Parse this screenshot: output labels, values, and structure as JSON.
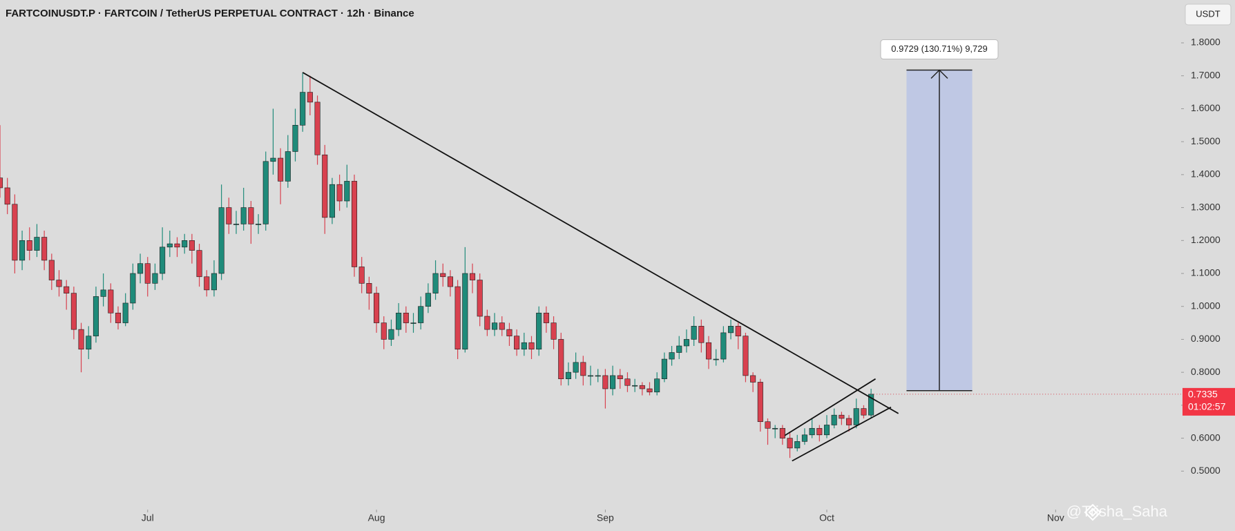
{
  "chart_data": {
    "type": "candlestick",
    "title": "FARTCOINUSDT.P · FARTCOIN / TetherUS PERPETUAL CONTRACT · 12h · Binance",
    "currency_label": "USDT",
    "open": [
      1.39,
      1.36,
      1.31,
      1.14,
      1.2,
      1.17,
      1.21,
      1.14,
      1.08,
      1.06,
      1.04,
      0.93,
      0.87,
      0.91,
      1.03,
      1.05,
      0.98,
      0.95,
      1.01,
      1.1,
      1.13,
      1.07,
      1.1,
      1.18,
      1.19,
      1.18,
      1.2,
      1.17,
      1.09,
      1.05,
      1.1,
      1.3,
      1.25,
      1.25,
      1.3,
      1.25,
      1.25,
      1.44,
      1.45,
      1.38,
      1.47,
      1.55,
      1.65,
      1.62,
      1.46,
      1.27,
      1.37,
      1.32,
      1.38,
      1.12,
      1.07,
      1.04,
      0.95,
      0.9,
      0.93,
      0.98,
      0.95,
      0.95,
      1.0,
      1.04,
      1.1,
      1.09,
      1.06,
      0.87,
      1.1,
      1.08,
      0.97,
      0.93,
      0.95,
      0.93,
      0.91,
      0.87,
      0.89,
      0.87,
      0.98,
      0.95,
      0.9,
      0.78,
      0.8,
      0.83,
      0.79,
      0.79,
      0.79,
      0.75,
      0.79,
      0.78,
      0.76,
      0.76,
      0.75,
      0.74,
      0.78,
      0.84,
      0.86,
      0.88,
      0.9,
      0.94,
      0.89,
      0.84,
      0.84,
      0.92,
      0.94,
      0.91,
      0.79,
      0.77,
      0.65,
      0.63,
      0.63,
      0.6,
      0.57,
      0.59,
      0.61,
      0.63,
      0.61,
      0.64,
      0.67,
      0.66,
      0.64,
      0.69,
      0.67
    ],
    "high": [
      1.55,
      1.39,
      1.34,
      1.23,
      1.24,
      1.25,
      1.23,
      1.16,
      1.11,
      1.08,
      1.06,
      0.95,
      0.94,
      1.06,
      1.1,
      1.07,
      1.0,
      1.04,
      1.13,
      1.16,
      1.15,
      1.13,
      1.24,
      1.23,
      1.21,
      1.22,
      1.22,
      1.19,
      1.11,
      1.14,
      1.37,
      1.33,
      1.29,
      1.36,
      1.32,
      1.28,
      1.47,
      1.6,
      1.48,
      1.52,
      1.6,
      1.71,
      1.7,
      1.64,
      1.49,
      1.39,
      1.4,
      1.43,
      1.4,
      1.15,
      1.09,
      1.06,
      0.97,
      0.96,
      1.01,
      1.0,
      0.98,
      1.03,
      1.07,
      1.14,
      1.13,
      1.11,
      1.08,
      1.18,
      1.13,
      1.1,
      0.99,
      0.98,
      0.97,
      0.95,
      0.93,
      0.92,
      0.91,
      1.0,
      1.0,
      0.97,
      0.92,
      0.83,
      0.86,
      0.85,
      0.82,
      0.81,
      0.81,
      0.82,
      0.81,
      0.8,
      0.78,
      0.77,
      0.77,
      0.8,
      0.86,
      0.88,
      0.91,
      0.93,
      0.97,
      0.96,
      0.91,
      0.87,
      0.94,
      0.96,
      0.95,
      0.92,
      0.8,
      0.78,
      0.66,
      0.64,
      0.64,
      0.62,
      0.61,
      0.63,
      0.66,
      0.64,
      0.67,
      0.69,
      0.68,
      0.67,
      0.72,
      0.7,
      0.75
    ],
    "low": [
      1.33,
      1.28,
      1.1,
      1.11,
      1.14,
      1.15,
      1.11,
      1.05,
      1.03,
      0.99,
      0.9,
      0.8,
      0.84,
      0.89,
      1.0,
      0.95,
      0.93,
      0.94,
      0.99,
      1.07,
      1.03,
      1.05,
      1.08,
      1.15,
      1.15,
      1.16,
      1.13,
      1.06,
      1.03,
      1.03,
      1.08,
      1.22,
      1.22,
      1.23,
      1.19,
      1.22,
      1.23,
      1.4,
      1.31,
      1.36,
      1.44,
      1.53,
      1.58,
      1.43,
      1.22,
      1.25,
      1.29,
      1.3,
      1.09,
      1.04,
      0.99,
      0.92,
      0.87,
      0.88,
      0.91,
      0.92,
      0.92,
      0.93,
      0.98,
      1.02,
      1.06,
      1.03,
      0.84,
      0.86,
      1.04,
      0.94,
      0.91,
      0.91,
      0.91,
      0.88,
      0.85,
      0.85,
      0.84,
      0.85,
      0.92,
      0.87,
      0.76,
      0.76,
      0.78,
      0.76,
      0.76,
      0.77,
      0.69,
      0.73,
      0.75,
      0.74,
      0.74,
      0.73,
      0.73,
      0.73,
      0.77,
      0.82,
      0.84,
      0.86,
      0.88,
      0.86,
      0.81,
      0.82,
      0.83,
      0.9,
      0.87,
      0.77,
      0.74,
      0.62,
      0.58,
      0.6,
      0.58,
      0.54,
      0.56,
      0.58,
      0.6,
      0.59,
      0.6,
      0.63,
      0.64,
      0.62,
      0.63,
      0.66,
      0.66
    ],
    "close": [
      1.36,
      1.31,
      1.14,
      1.2,
      1.17,
      1.21,
      1.14,
      1.08,
      1.06,
      1.04,
      0.93,
      0.87,
      0.91,
      1.03,
      1.05,
      0.98,
      0.95,
      1.01,
      1.1,
      1.13,
      1.07,
      1.1,
      1.18,
      1.19,
      1.18,
      1.2,
      1.17,
      1.09,
      1.05,
      1.1,
      1.3,
      1.25,
      1.25,
      1.3,
      1.25,
      1.25,
      1.44,
      1.45,
      1.38,
      1.47,
      1.55,
      1.65,
      1.62,
      1.46,
      1.27,
      1.37,
      1.32,
      1.38,
      1.12,
      1.07,
      1.04,
      0.95,
      0.9,
      0.93,
      0.98,
      0.95,
      0.95,
      1.0,
      1.04,
      1.1,
      1.09,
      1.06,
      0.87,
      1.1,
      1.08,
      0.97,
      0.93,
      0.95,
      0.93,
      0.91,
      0.87,
      0.89,
      0.87,
      0.98,
      0.95,
      0.9,
      0.78,
      0.8,
      0.83,
      0.79,
      0.79,
      0.79,
      0.75,
      0.79,
      0.78,
      0.76,
      0.76,
      0.75,
      0.74,
      0.78,
      0.84,
      0.86,
      0.88,
      0.9,
      0.94,
      0.89,
      0.84,
      0.84,
      0.92,
      0.94,
      0.91,
      0.79,
      0.77,
      0.65,
      0.63,
      0.63,
      0.6,
      0.57,
      0.59,
      0.61,
      0.63,
      0.61,
      0.64,
      0.67,
      0.66,
      0.64,
      0.69,
      0.67,
      0.7335
    ],
    "up_color": "#1f8b7a",
    "down_color": "#d8414f",
    "xlim": [
      0,
      160
    ],
    "xticks": [
      {
        "value": 20,
        "label": "Jul"
      },
      {
        "value": 51,
        "label": "Aug"
      },
      {
        "value": 82,
        "label": "Sep"
      },
      {
        "value": 112,
        "label": "Oct"
      },
      {
        "value": 143,
        "label": "Nov"
      }
    ],
    "ylim": [
      0.4,
      1.93
    ],
    "yticks": [
      {
        "value": 0.5,
        "label": "0.5000"
      },
      {
        "value": 0.6,
        "label": "0.6000"
      },
      {
        "value": 0.7,
        "label": "0.7000"
      },
      {
        "value": 0.8,
        "label": "0.8000"
      },
      {
        "value": 0.9,
        "label": "0.9000"
      },
      {
        "value": 1.0,
        "label": "1.0000"
      },
      {
        "value": 1.1,
        "label": "1.1000"
      },
      {
        "value": 1.2,
        "label": "1.2000"
      },
      {
        "value": 1.3,
        "label": "1.3000"
      },
      {
        "value": 1.4,
        "label": "1.4000"
      },
      {
        "value": 1.5,
        "label": "1.5000"
      },
      {
        "value": 1.6,
        "label": "1.6000"
      },
      {
        "value": 1.7,
        "label": "1.7000"
      },
      {
        "value": 1.8,
        "label": "1.8000"
      }
    ],
    "trendlines": [
      {
        "x": [
          41,
          121.7
        ],
        "y": [
          1.71,
          0.675
        ]
      },
      {
        "x": [
          106.3,
          118.6
        ],
        "y": [
          0.608,
          0.78
        ]
      },
      {
        "x": [
          107.3,
          120.7
        ],
        "y": [
          0.531,
          0.694
        ]
      }
    ],
    "target_box": {
      "x": [
        122.8,
        131.7
      ],
      "y": [
        0.7443,
        1.7172
      ],
      "label": "0.9729 (130.71%) 9,729",
      "color": "#bfc8e4"
    },
    "last_price": 0.7335,
    "countdown": "01:02:57",
    "watermark": "@Trisha_Saha"
  }
}
